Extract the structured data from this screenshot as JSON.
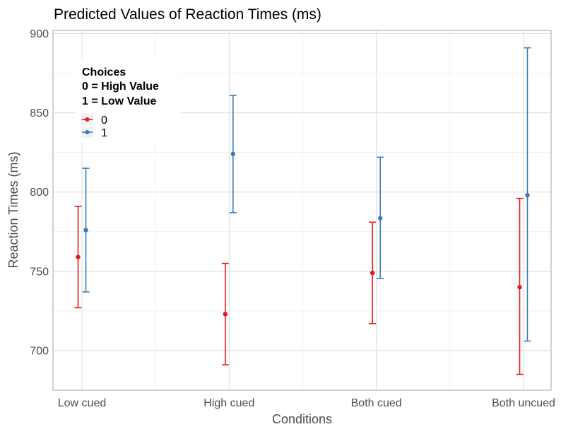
{
  "chart_data": {
    "type": "scatter",
    "title": "Predicted Values of Reaction Times (ms)",
    "xlabel": "Conditions",
    "ylabel": "Reaction Times (ms)",
    "categories": [
      "Low cued",
      "High cued",
      "Both cued",
      "Both uncued"
    ],
    "ylim": [
      675,
      902
    ],
    "yticks": [
      700,
      750,
      800,
      850,
      900
    ],
    "grid": true,
    "legend": {
      "title_lines": [
        "Choices",
        "0 = High Value",
        "1 = Low Value"
      ],
      "position": "top-left"
    },
    "series": [
      {
        "name": "0",
        "color": "#e41a1c",
        "values": [
          759,
          723,
          749,
          740
        ],
        "lower": [
          727,
          691,
          717,
          685
        ],
        "upper": [
          791,
          755,
          781,
          796
        ]
      },
      {
        "name": "1",
        "color": "#377eb8",
        "values": [
          776,
          824,
          783.5,
          798
        ],
        "lower": [
          737,
          787,
          745.5,
          706
        ],
        "upper": [
          815,
          861,
          822,
          891
        ]
      }
    ]
  }
}
